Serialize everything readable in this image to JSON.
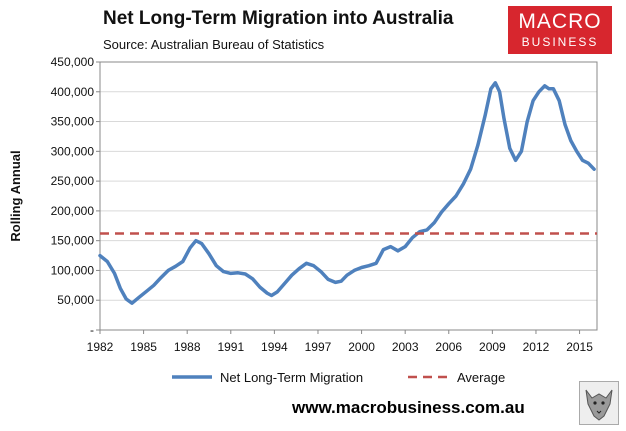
{
  "title": "Net Long-Term Migration into Australia",
  "subtitle": "Source: Australian Bureau of Statistics",
  "logo": {
    "line1": "MACRO",
    "line2": "BUSINESS"
  },
  "footer": "www.macrobusiness.com.au",
  "chart_data": {
    "type": "line",
    "ylabel": "Rolling Annual",
    "xlabel": "",
    "xlim": [
      1982,
      2016.2
    ],
    "ylim": [
      0,
      450000
    ],
    "y_ticks": [
      {
        "value": 0,
        "label": "-"
      },
      {
        "value": 50000,
        "label": "50,000"
      },
      {
        "value": 100000,
        "label": "100,000"
      },
      {
        "value": 150000,
        "label": "150,000"
      },
      {
        "value": 200000,
        "label": "200,000"
      },
      {
        "value": 250000,
        "label": "250,000"
      },
      {
        "value": 300000,
        "label": "300,000"
      },
      {
        "value": 350000,
        "label": "350,000"
      },
      {
        "value": 400000,
        "label": "400,000"
      },
      {
        "value": 450000,
        "label": "450,000"
      }
    ],
    "x_ticks": [
      {
        "value": 1982,
        "label": "1982"
      },
      {
        "value": 1985,
        "label": "1985"
      },
      {
        "value": 1988,
        "label": "1988"
      },
      {
        "value": 1991,
        "label": "1991"
      },
      {
        "value": 1994,
        "label": "1994"
      },
      {
        "value": 1997,
        "label": "1997"
      },
      {
        "value": 2000,
        "label": "2000"
      },
      {
        "value": 2003,
        "label": "2003"
      },
      {
        "value": 2006,
        "label": "2006"
      },
      {
        "value": 2009,
        "label": "2009"
      },
      {
        "value": 2012,
        "label": "2012"
      },
      {
        "value": 2015,
        "label": "2015"
      }
    ],
    "legend_position": "bottom",
    "series": [
      {
        "name": "Net Long-Term Migration",
        "color": "#4f81bd",
        "style": "solid",
        "x": [
          1982.0,
          1982.5,
          1983.0,
          1983.4,
          1983.8,
          1984.2,
          1984.7,
          1985.2,
          1985.7,
          1986.2,
          1986.7,
          1987.2,
          1987.7,
          1988.2,
          1988.6,
          1989.0,
          1989.5,
          1990.0,
          1990.5,
          1991.0,
          1991.5,
          1992.0,
          1992.5,
          1993.0,
          1993.5,
          1993.8,
          1994.2,
          1994.7,
          1995.2,
          1995.7,
          1996.2,
          1996.7,
          1997.2,
          1997.7,
          1998.2,
          1998.6,
          1999.0,
          1999.5,
          2000.0,
          2000.5,
          2001.0,
          2001.5,
          2002.0,
          2002.5,
          2003.0,
          2003.5,
          2004.0,
          2004.5,
          2005.0,
          2005.5,
          2006.0,
          2006.5,
          2007.0,
          2007.5,
          2008.0,
          2008.5,
          2008.9,
          2009.2,
          2009.5,
          2009.8,
          2010.2,
          2010.6,
          2011.0,
          2011.4,
          2011.8,
          2012.2,
          2012.6,
          2012.9,
          2013.2,
          2013.6,
          2014.0,
          2014.4,
          2014.8,
          2015.2,
          2015.6,
          2016.0
        ],
        "values": [
          125000,
          115000,
          95000,
          70000,
          52000,
          45000,
          55000,
          65000,
          75000,
          88000,
          100000,
          107000,
          115000,
          138000,
          150000,
          145000,
          128000,
          108000,
          98000,
          95000,
          96000,
          94000,
          86000,
          72000,
          62000,
          58000,
          64000,
          78000,
          92000,
          103000,
          112000,
          108000,
          98000,
          85000,
          80000,
          82000,
          92000,
          100000,
          105000,
          108000,
          112000,
          135000,
          140000,
          133000,
          140000,
          155000,
          165000,
          168000,
          180000,
          198000,
          212000,
          225000,
          245000,
          270000,
          310000,
          360000,
          405000,
          415000,
          400000,
          355000,
          305000,
          285000,
          300000,
          350000,
          385000,
          400000,
          410000,
          405000,
          405000,
          385000,
          345000,
          318000,
          300000,
          285000,
          280000,
          270000
        ]
      },
      {
        "name": "Average",
        "color": "#c0504d",
        "style": "dashed",
        "x": [
          1982,
          2016.2
        ],
        "values": [
          162000,
          162000
        ]
      }
    ]
  },
  "colors": {
    "series_blue": "#4f81bd",
    "average_red": "#c0504d",
    "logo_red": "#d7262e"
  }
}
